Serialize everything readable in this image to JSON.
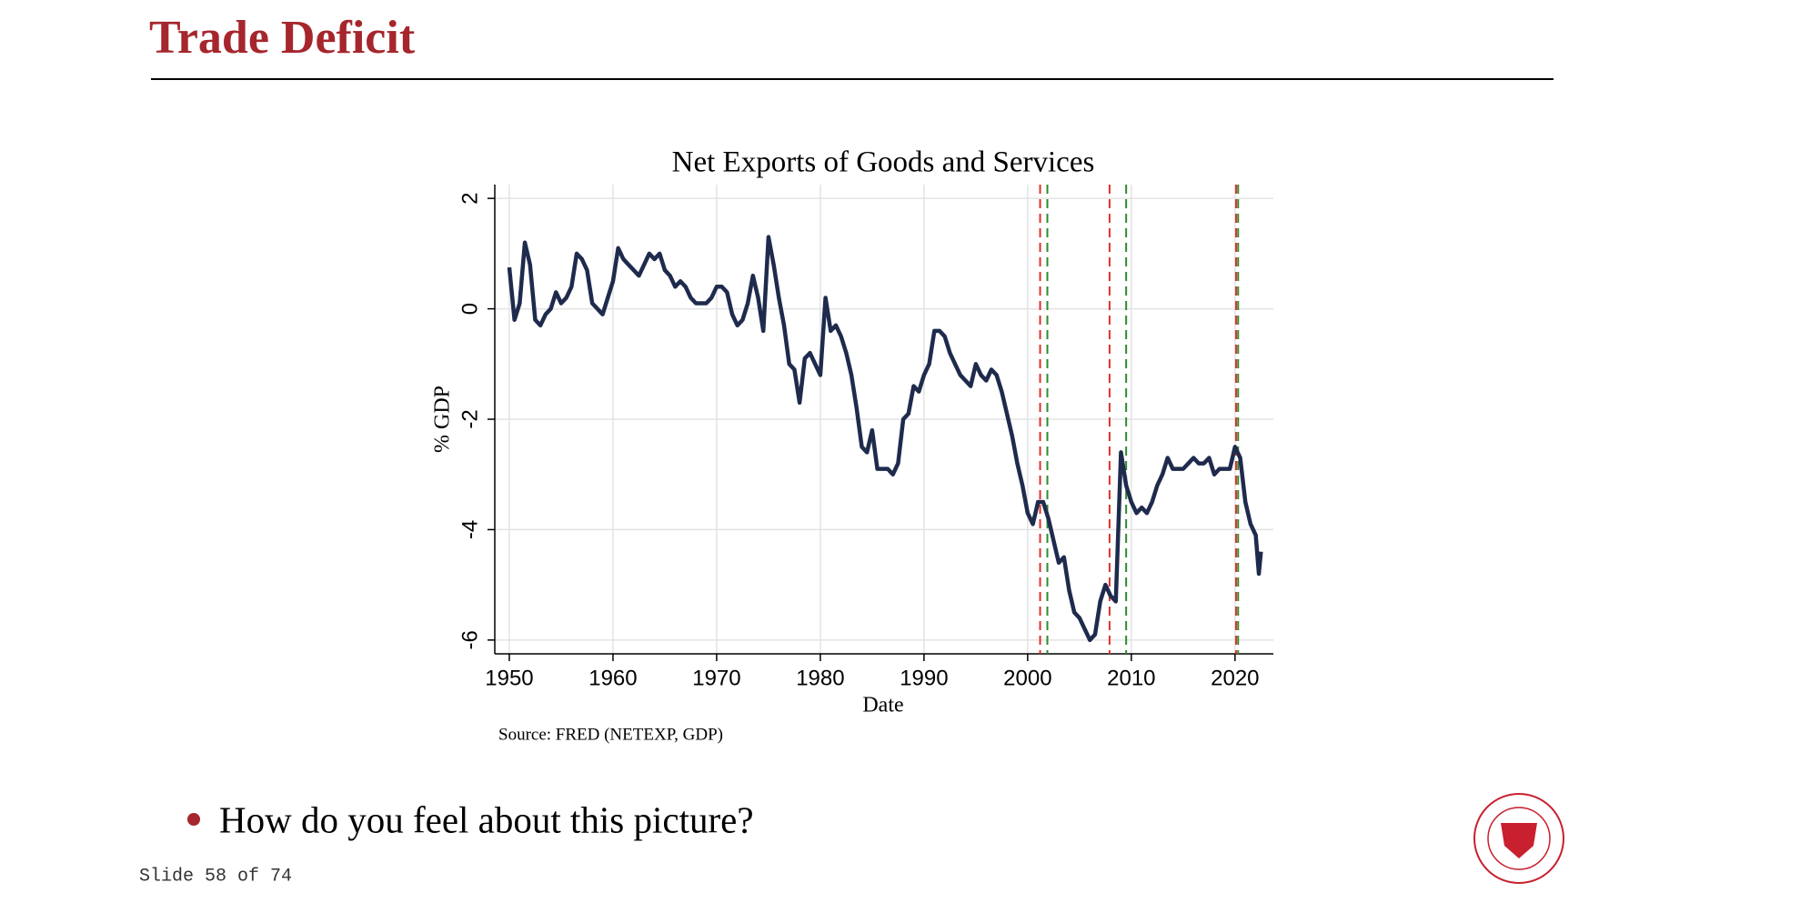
{
  "header": {
    "title": "Trade Deficit"
  },
  "chart_data": {
    "type": "line",
    "title": "Net Exports of Goods and Services",
    "x_label": "Date",
    "y_label": "% GDP",
    "source": "Source: FRED (NETEXP, GDP)",
    "xlim": [
      1948.6,
      2023.7
    ],
    "xticks": [
      1950,
      1960,
      1970,
      1980,
      1990,
      2000,
      2010,
      2020
    ],
    "ylim": [
      -6.25,
      2.25
    ],
    "yticks": [
      2,
      0,
      -2,
      -4,
      -6
    ],
    "grid": true,
    "recession_starts": [
      2001.2,
      2007.9,
      2020.1
    ],
    "recession_start_color": "#e0312b",
    "recession_ends": [
      2001.9,
      2009.5,
      2020.3
    ],
    "recession_end_color": "#2e8b2e",
    "series": [
      {
        "color": "#1f2b4d",
        "x": [
          1950,
          1950.5,
          1951,
          1951.5,
          1952,
          1952.5,
          1953,
          1953.5,
          1954,
          1954.5,
          1955,
          1955.5,
          1956,
          1956.5,
          1957,
          1957.5,
          1958,
          1958.5,
          1959,
          1959.5,
          1960,
          1960.5,
          1961,
          1961.5,
          1962,
          1962.5,
          1963,
          1963.5,
          1964,
          1964.5,
          1965,
          1965.5,
          1966,
          1966.5,
          1967,
          1967.5,
          1968,
          1968.5,
          1969,
          1969.5,
          1970,
          1970.5,
          1971,
          1971.5,
          1972,
          1972.5,
          1973,
          1973.5,
          1974,
          1974.5,
          1975,
          1975.5,
          1976,
          1976.5,
          1977,
          1977.5,
          1978,
          1978.5,
          1979,
          1979.5,
          1980,
          1980.5,
          1981,
          1981.5,
          1982,
          1982.5,
          1983,
          1983.5,
          1984,
          1984.5,
          1985,
          1985.5,
          1986,
          1986.5,
          1987,
          1987.5,
          1988,
          1988.5,
          1989,
          1989.5,
          1990,
          1990.5,
          1991,
          1991.5,
          1992,
          1992.5,
          1993,
          1993.5,
          1994,
          1994.5,
          1995,
          1995.5,
          1996,
          1996.5,
          1997,
          1997.5,
          1998,
          1998.5,
          1999,
          1999.5,
          2000,
          2000.5,
          2001,
          2001.5,
          2002,
          2002.5,
          2003,
          2003.5,
          2004,
          2004.5,
          2005,
          2005.5,
          2006,
          2006.5,
          2007,
          2007.5,
          2008,
          2008.5,
          2009,
          2009.5,
          2010,
          2010.5,
          2011,
          2011.5,
          2012,
          2012.5,
          2013,
          2013.5,
          2014,
          2014.5,
          2015,
          2015.5,
          2016,
          2016.5,
          2017,
          2017.5,
          2018,
          2018.5,
          2019,
          2019.5,
          2020,
          2020.5,
          2021,
          2021.5,
          2022,
          2022.3,
          2022.5
        ],
        "values": [
          0.75,
          -0.2,
          0.1,
          1.2,
          0.8,
          -0.2,
          -0.3,
          -0.1,
          0.0,
          0.3,
          0.1,
          0.2,
          0.4,
          1.0,
          0.9,
          0.7,
          0.1,
          0.0,
          -0.1,
          0.2,
          0.5,
          1.1,
          0.9,
          0.8,
          0.7,
          0.6,
          0.8,
          1.0,
          0.9,
          1.0,
          0.7,
          0.6,
          0.4,
          0.5,
          0.4,
          0.2,
          0.1,
          0.1,
          0.1,
          0.2,
          0.4,
          0.4,
          0.3,
          -0.1,
          -0.3,
          -0.2,
          0.1,
          0.6,
          0.2,
          -0.4,
          1.3,
          0.8,
          0.2,
          -0.3,
          -1.0,
          -1.1,
          -1.7,
          -0.9,
          -0.8,
          -1.0,
          -1.2,
          0.2,
          -0.4,
          -0.3,
          -0.5,
          -0.8,
          -1.2,
          -1.8,
          -2.5,
          -2.6,
          -2.2,
          -2.9,
          -2.9,
          -2.9,
          -3.0,
          -2.8,
          -2.0,
          -1.9,
          -1.4,
          -1.5,
          -1.2,
          -1.0,
          -0.4,
          -0.4,
          -0.5,
          -0.8,
          -1.0,
          -1.2,
          -1.3,
          -1.4,
          -1.0,
          -1.2,
          -1.3,
          -1.1,
          -1.2,
          -1.5,
          -1.9,
          -2.3,
          -2.8,
          -3.2,
          -3.7,
          -3.9,
          -3.5,
          -3.5,
          -3.8,
          -4.2,
          -4.6,
          -4.5,
          -5.1,
          -5.5,
          -5.6,
          -5.8,
          -6.0,
          -5.9,
          -5.3,
          -5.0,
          -5.2,
          -5.3,
          -2.6,
          -3.2,
          -3.5,
          -3.7,
          -3.6,
          -3.7,
          -3.5,
          -3.2,
          -3.0,
          -2.7,
          -2.9,
          -2.9,
          -2.9,
          -2.8,
          -2.7,
          -2.8,
          -2.8,
          -2.7,
          -3.0,
          -2.9,
          -2.9,
          -2.9,
          -2.5,
          -2.7,
          -3.5,
          -3.9,
          -4.1,
          -4.8,
          -4.4
        ]
      }
    ]
  },
  "bullets": [
    "How do you feel about this picture?"
  ],
  "footer": {
    "slide": "Slide 58 of 74"
  }
}
